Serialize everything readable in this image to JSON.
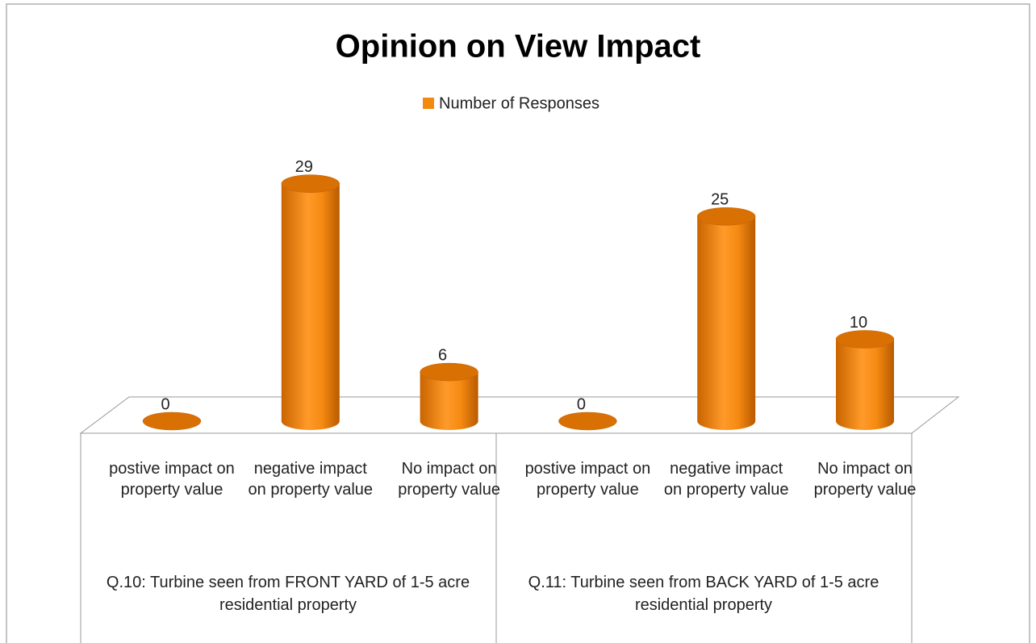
{
  "chart_data": {
    "type": "bar3d",
    "title": "Opinion on View Impact",
    "categories": [
      "postive impact on property value",
      "negative impact on property value",
      "No impact on property value",
      "postive impact on property value",
      "negative impact on property value",
      "No impact on property value"
    ],
    "groups": [
      "Q.10: Turbine seen from FRONT YARD of 1-5 acre residential property",
      "Q.11: Turbine seen from BACK YARD of 1-5 acre residential property"
    ],
    "series": [
      {
        "name": "Number of Responses",
        "color": "#f28a0f",
        "values": [
          0,
          29,
          6,
          0,
          25,
          10
        ]
      }
    ],
    "data_labels": true,
    "legend": "top"
  }
}
